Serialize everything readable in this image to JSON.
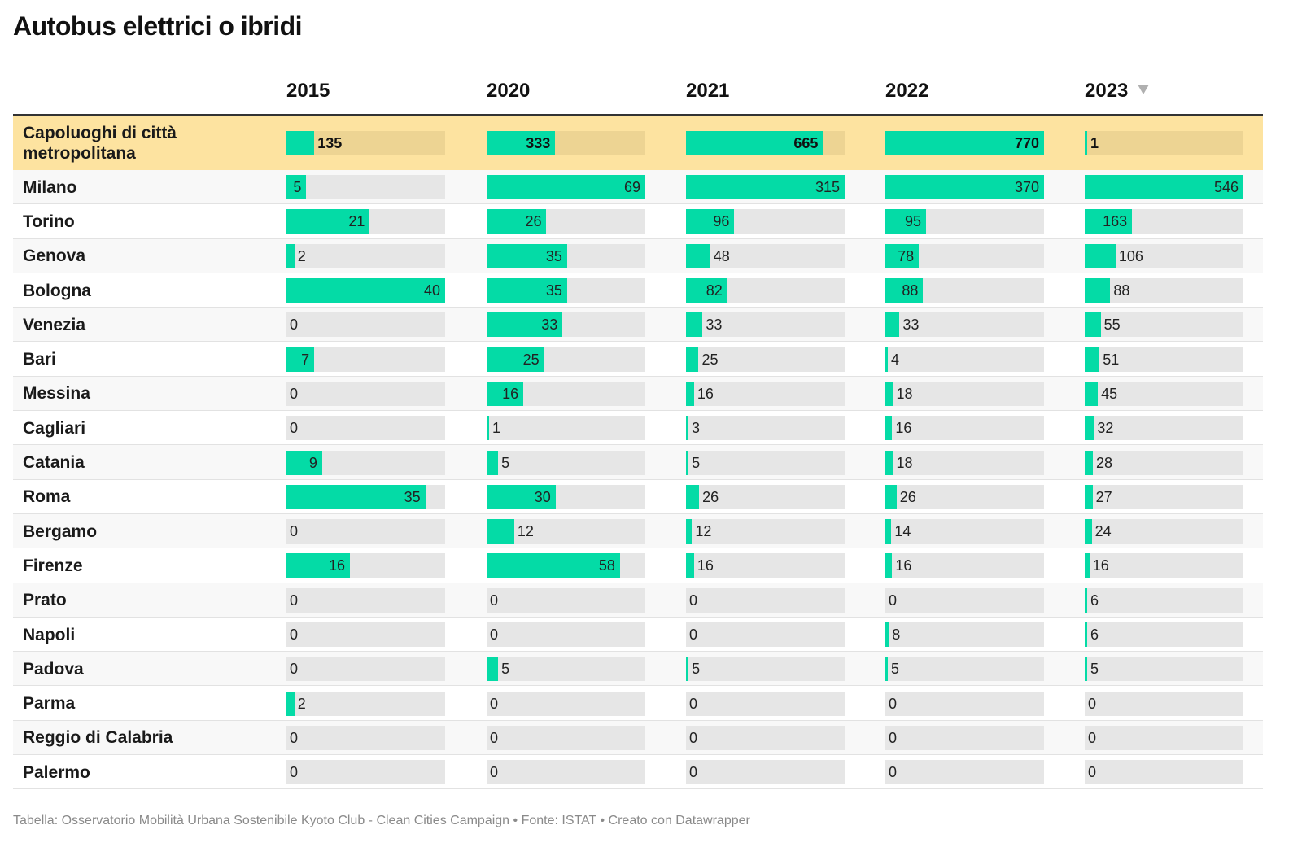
{
  "title": "Autobus elettrici o ibridi",
  "footer": "Tabella: Osservatorio Mobilità Urbana Sostenibile Kyoto Club - Clean Cities Campaign • Fonte: ISTAT • Creato con Datawrapper",
  "sort_icon": "sort-descending-icon",
  "colors": {
    "bar": "#04dba6",
    "track": "#e6e6e6",
    "highlight": "#fde3a0"
  },
  "chart_data": {
    "type": "table",
    "title": "Autobus elettrici o ibridi",
    "columns": [
      "2015",
      "2020",
      "2021",
      "2022",
      "2023"
    ],
    "sorted_by": "2023",
    "sort_order": "descending",
    "rows": [
      {
        "label": "Capoluoghi di città metropolitana",
        "values": [
          135,
          333,
          665,
          770,
          1
        ],
        "highlight": true
      },
      {
        "label": "Milano",
        "values": [
          5,
          69,
          315,
          370,
          546
        ]
      },
      {
        "label": "Torino",
        "values": [
          21,
          26,
          96,
          95,
          163
        ]
      },
      {
        "label": "Genova",
        "values": [
          2,
          35,
          48,
          78,
          106
        ]
      },
      {
        "label": "Bologna",
        "values": [
          40,
          35,
          82,
          88,
          88
        ]
      },
      {
        "label": "Venezia",
        "values": [
          0,
          33,
          33,
          33,
          55
        ]
      },
      {
        "label": "Bari",
        "values": [
          7,
          25,
          25,
          4,
          51
        ]
      },
      {
        "label": "Messina",
        "values": [
          0,
          16,
          16,
          18,
          45
        ]
      },
      {
        "label": "Cagliari",
        "values": [
          0,
          1,
          3,
          16,
          32
        ]
      },
      {
        "label": "Catania",
        "values": [
          9,
          5,
          5,
          18,
          28
        ]
      },
      {
        "label": "Roma",
        "values": [
          35,
          30,
          26,
          26,
          27
        ]
      },
      {
        "label": "Bergamo",
        "values": [
          0,
          12,
          12,
          14,
          24
        ]
      },
      {
        "label": "Firenze",
        "values": [
          16,
          58,
          16,
          16,
          16
        ]
      },
      {
        "label": "Prato",
        "values": [
          0,
          0,
          0,
          0,
          6
        ]
      },
      {
        "label": "Napoli",
        "values": [
          0,
          0,
          0,
          8,
          6
        ]
      },
      {
        "label": "Padova",
        "values": [
          0,
          5,
          5,
          5,
          5
        ]
      },
      {
        "label": "Parma",
        "values": [
          2,
          0,
          0,
          0,
          0
        ]
      },
      {
        "label": "Reggio di Calabria",
        "values": [
          0,
          0,
          0,
          0,
          0
        ]
      },
      {
        "label": "Palermo",
        "values": [
          0,
          0,
          0,
          0,
          0
        ]
      }
    ]
  }
}
